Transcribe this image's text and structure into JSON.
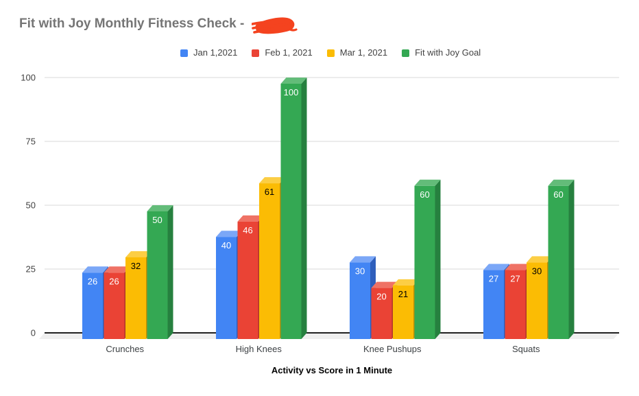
{
  "title": {
    "text": "Fit with Joy Monthly Fitness Check - ",
    "color": "#757575"
  },
  "scribble": {
    "description": "red scribble redacting a word after the title dash",
    "color": "#f4431f"
  },
  "legend": {
    "position": "top"
  },
  "chart_data": {
    "type": "bar",
    "style": "3d-column",
    "title": "Fit with Joy Monthly Fitness Check - ",
    "categories": [
      "Crunches",
      "High Knees",
      "Knee Pushups",
      "Squats"
    ],
    "series": [
      {
        "name": "Jan 1,2021",
        "color": "#4285F4",
        "top_color": "#7BA7F7",
        "side_color": "#2F5FBC",
        "value_label_color": "#ffffff",
        "values": [
          26,
          40,
          30,
          27
        ]
      },
      {
        "name": "Feb 1, 2021",
        "color": "#EA4335",
        "top_color": "#EF7265",
        "side_color": "#B0342A",
        "value_label_color": "#ffffff",
        "values": [
          26,
          46,
          20,
          27
        ]
      },
      {
        "name": "Mar 1, 2021",
        "color": "#FBBC04",
        "top_color": "#FCCE44",
        "side_color": "#C18F03",
        "value_label_color": "#000000",
        "values": [
          32,
          61,
          21,
          30
        ]
      },
      {
        "name": "Fit with Joy Goal",
        "color": "#34A853",
        "top_color": "#63BC79",
        "side_color": "#26803F",
        "value_label_color": "#ffffff",
        "values": [
          50,
          100,
          60,
          60
        ]
      }
    ],
    "xlabel": "Activity vs Score in 1 Minute",
    "ylabel": "",
    "yticks": [
      0,
      25,
      50,
      75,
      100
    ],
    "ylim": [
      0,
      100
    ],
    "grid": true,
    "legend_position": "top",
    "colors": {
      "gridline": "#d9d9d9",
      "baseline": "#212121",
      "floor": "#efefef",
      "tick_label": "#424242",
      "category_label": "#3c4043",
      "axis_title": "#000000"
    }
  }
}
